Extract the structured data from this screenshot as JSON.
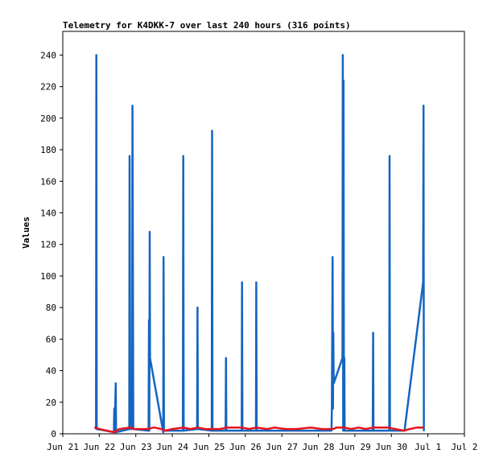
{
  "chart_data": {
    "type": "line",
    "title": "Telemetry for K4DKK-7 over last 240 hours (316 points)",
    "xlabel": "",
    "ylabel": "Values",
    "x_tick_labels": [
      "Jun 21",
      "Jun 22",
      "Jun 23",
      "Jun 24",
      "Jun 25",
      "Jun 26",
      "Jun 27",
      "Jun 28",
      "Jun 29",
      "Jun 30",
      "Jul 1",
      "Jul 2"
    ],
    "x_range_days": [
      0,
      11
    ],
    "ylim": [
      0,
      255
    ],
    "yticks": [
      0,
      20,
      40,
      60,
      80,
      100,
      120,
      140,
      160,
      180,
      200,
      220,
      240
    ],
    "grid": false,
    "legend": "none",
    "colors": {
      "blue_series": "#1565c0",
      "red_series": "#e8141c",
      "axis": "#000000",
      "background": "#ffffff"
    },
    "series": [
      {
        "color": "#1565c0",
        "points": [
          [
            0.91,
            3
          ],
          [
            0.92,
            240
          ],
          [
            0.93,
            3
          ],
          [
            1.4,
            1
          ],
          [
            1.41,
            16
          ],
          [
            1.42,
            1
          ],
          [
            1.45,
            32
          ],
          [
            1.46,
            1
          ],
          [
            1.82,
            3
          ],
          [
            1.83,
            176
          ],
          [
            1.85,
            3
          ],
          [
            1.87,
            16
          ],
          [
            1.88,
            3
          ],
          [
            1.89,
            26
          ],
          [
            1.9,
            3
          ],
          [
            1.91,
            208
          ],
          [
            1.93,
            3
          ],
          [
            2.35,
            2
          ],
          [
            2.36,
            72
          ],
          [
            2.37,
            2
          ],
          [
            2.38,
            128
          ],
          [
            2.39,
            48
          ],
          [
            2.75,
            1
          ],
          [
            2.76,
            112
          ],
          [
            2.77,
            2
          ],
          [
            3.29,
            2
          ],
          [
            3.3,
            176
          ],
          [
            3.31,
            2
          ],
          [
            3.68,
            3
          ],
          [
            3.69,
            80
          ],
          [
            3.7,
            3
          ],
          [
            4.08,
            2
          ],
          [
            4.09,
            192
          ],
          [
            4.1,
            2
          ],
          [
            4.46,
            2
          ],
          [
            4.47,
            48
          ],
          [
            4.48,
            2
          ],
          [
            4.9,
            2
          ],
          [
            4.91,
            96
          ],
          [
            4.92,
            2
          ],
          [
            5.29,
            2
          ],
          [
            5.3,
            96
          ],
          [
            5.31,
            2
          ],
          [
            7.36,
            2
          ],
          [
            7.37,
            16
          ],
          [
            7.38,
            64
          ],
          [
            7.39,
            112
          ],
          [
            7.4,
            16
          ],
          [
            7.41,
            64
          ],
          [
            7.42,
            32
          ],
          [
            7.66,
            48
          ],
          [
            7.67,
            240
          ],
          [
            7.68,
            2
          ],
          [
            7.69,
            224
          ],
          [
            7.7,
            2
          ],
          [
            7.71,
            48
          ],
          [
            7.72,
            2
          ],
          [
            8.49,
            2
          ],
          [
            8.5,
            64
          ],
          [
            8.51,
            2
          ],
          [
            8.94,
            2
          ],
          [
            8.95,
            176
          ],
          [
            8.96,
            2
          ],
          [
            9.35,
            2
          ],
          [
            9.36,
            2
          ],
          [
            9.87,
            96
          ],
          [
            9.88,
            208
          ],
          [
            9.89,
            2
          ]
        ]
      },
      {
        "color": "#e8141c",
        "points": [
          [
            0.88,
            4
          ],
          [
            1.0,
            3
          ],
          [
            1.2,
            2
          ],
          [
            1.4,
            1
          ],
          [
            1.55,
            3
          ],
          [
            1.85,
            4
          ],
          [
            1.95,
            3
          ],
          [
            2.3,
            3
          ],
          [
            2.5,
            4
          ],
          [
            2.7,
            3
          ],
          [
            2.8,
            2
          ],
          [
            3.0,
            3
          ],
          [
            3.3,
            4
          ],
          [
            3.5,
            3
          ],
          [
            3.7,
            4
          ],
          [
            3.9,
            3
          ],
          [
            4.1,
            3
          ],
          [
            4.3,
            3
          ],
          [
            4.5,
            4
          ],
          [
            4.9,
            4
          ],
          [
            5.1,
            3
          ],
          [
            5.3,
            4
          ],
          [
            5.6,
            3
          ],
          [
            5.8,
            4
          ],
          [
            6.1,
            3
          ],
          [
            6.4,
            3
          ],
          [
            6.8,
            4
          ],
          [
            7.1,
            3
          ],
          [
            7.4,
            3
          ],
          [
            7.5,
            4
          ],
          [
            7.7,
            4
          ],
          [
            7.9,
            3
          ],
          [
            8.1,
            4
          ],
          [
            8.3,
            3
          ],
          [
            8.5,
            4
          ],
          [
            8.9,
            4
          ],
          [
            9.1,
            3
          ],
          [
            9.35,
            2
          ],
          [
            9.5,
            3
          ],
          [
            9.7,
            4
          ],
          [
            9.87,
            4
          ]
        ]
      }
    ]
  }
}
